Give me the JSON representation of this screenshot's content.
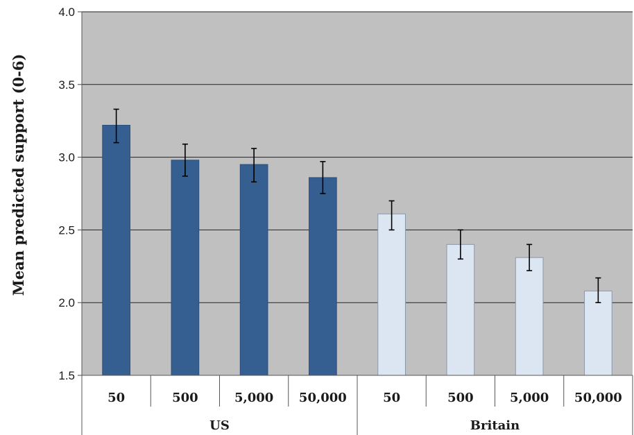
{
  "chart_data": {
    "type": "bar",
    "title": "",
    "xlabel": "",
    "ylabel": "Mean predicted support (0-6)",
    "ylim": [
      1.5,
      4.0
    ],
    "yticks": [
      "1.5",
      "2.0",
      "2.5",
      "3.0",
      "3.5",
      "4.0"
    ],
    "grid": true,
    "legend": "none",
    "colors": {
      "plot_background": "#c0c0c0",
      "us_bar": "#365f91",
      "britain_bar": "#dce6f2",
      "gridline": "#222222",
      "error_bar": "#000000"
    },
    "groups": [
      {
        "name": "US",
        "categories": [
          "50",
          "500",
          "5,000",
          "50,000"
        ],
        "values": [
          3.22,
          2.98,
          2.95,
          2.86
        ],
        "error_low": [
          3.1,
          2.87,
          2.83,
          2.75
        ],
        "error_high": [
          3.33,
          3.09,
          3.06,
          2.97
        ]
      },
      {
        "name": "Britain",
        "categories": [
          "50",
          "500",
          "5,000",
          "50,000"
        ],
        "values": [
          2.61,
          2.4,
          2.31,
          2.08
        ],
        "error_low": [
          2.5,
          2.3,
          2.22,
          2.0
        ],
        "error_high": [
          2.7,
          2.5,
          2.4,
          2.17
        ]
      }
    ]
  }
}
